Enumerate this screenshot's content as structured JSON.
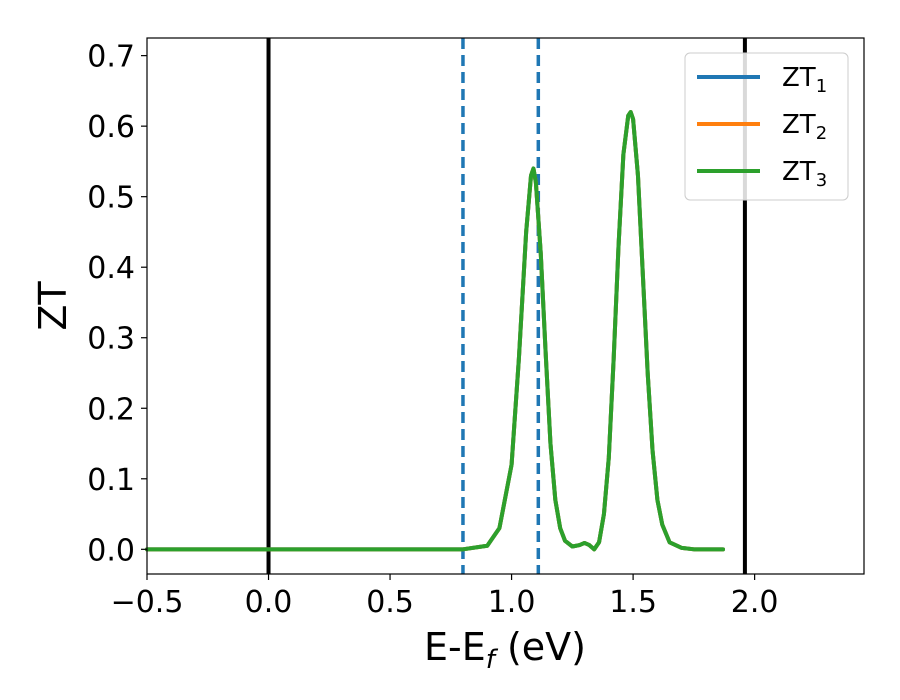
{
  "colors": {
    "ZT1": "#1f77b4",
    "ZT2": "#ff7f0e",
    "ZT3": "#2ca02c",
    "vline_solid": "#000000",
    "vline_dashed": "#1f77b4"
  },
  "chart_data": {
    "type": "line",
    "xlabel": "E-E",
    "xlabel_sub": "f",
    "xlabel_unit": " (eV)",
    "ylabel": "ZT",
    "xlim": [
      -0.5,
      2.45
    ],
    "ylim": [
      -0.035,
      0.725
    ],
    "xticks": [
      -0.5,
      0.0,
      0.5,
      1.0,
      1.5,
      2.0
    ],
    "xtick_labels": [
      "−0.5",
      "0.0",
      "0.5",
      "1.0",
      "1.5",
      "2.0"
    ],
    "yticks": [
      0.0,
      0.1,
      0.2,
      0.3,
      0.4,
      0.5,
      0.6,
      0.7
    ],
    "ytick_labels": [
      "0.0",
      "0.1",
      "0.2",
      "0.3",
      "0.4",
      "0.5",
      "0.6",
      "0.7"
    ],
    "grid": false,
    "legend_position": "top-right",
    "x": [
      -0.5,
      0.0,
      0.5,
      0.8,
      0.9,
      0.95,
      1.0,
      1.03,
      1.06,
      1.08,
      1.09,
      1.1,
      1.12,
      1.14,
      1.16,
      1.18,
      1.2,
      1.22,
      1.25,
      1.28,
      1.3,
      1.32,
      1.34,
      1.36,
      1.38,
      1.4,
      1.42,
      1.44,
      1.46,
      1.48,
      1.49,
      1.5,
      1.52,
      1.54,
      1.56,
      1.58,
      1.6,
      1.62,
      1.65,
      1.7,
      1.75,
      1.8,
      1.87
    ],
    "series": [
      {
        "name": "ZT",
        "sub": "1",
        "color_key": "ZT1",
        "values": [
          0.0,
          0.0,
          0.0,
          0.0,
          0.005,
          0.03,
          0.12,
          0.27,
          0.45,
          0.53,
          0.54,
          0.52,
          0.42,
          0.28,
          0.15,
          0.07,
          0.03,
          0.012,
          0.004,
          0.006,
          0.009,
          0.006,
          0.0,
          0.01,
          0.05,
          0.13,
          0.27,
          0.43,
          0.56,
          0.615,
          0.62,
          0.61,
          0.53,
          0.39,
          0.25,
          0.14,
          0.07,
          0.035,
          0.01,
          0.002,
          0.0,
          0.0,
          0.0
        ]
      },
      {
        "name": "ZT",
        "sub": "2",
        "color_key": "ZT2",
        "values": [
          0.0,
          0.0,
          0.0,
          0.0,
          0.005,
          0.03,
          0.12,
          0.27,
          0.45,
          0.53,
          0.54,
          0.52,
          0.42,
          0.28,
          0.15,
          0.07,
          0.03,
          0.012,
          0.004,
          0.006,
          0.009,
          0.006,
          0.0,
          0.01,
          0.05,
          0.13,
          0.27,
          0.43,
          0.56,
          0.615,
          0.62,
          0.61,
          0.53,
          0.39,
          0.25,
          0.14,
          0.07,
          0.035,
          0.01,
          0.002,
          0.0,
          0.0,
          0.0
        ]
      },
      {
        "name": "ZT",
        "sub": "3",
        "color_key": "ZT3",
        "values": [
          0.0,
          0.0,
          0.0,
          0.0,
          0.005,
          0.03,
          0.12,
          0.27,
          0.45,
          0.53,
          0.54,
          0.52,
          0.42,
          0.28,
          0.15,
          0.07,
          0.03,
          0.012,
          0.004,
          0.006,
          0.009,
          0.006,
          0.0,
          0.01,
          0.05,
          0.13,
          0.27,
          0.43,
          0.56,
          0.615,
          0.62,
          0.61,
          0.53,
          0.39,
          0.25,
          0.14,
          0.07,
          0.035,
          0.01,
          0.002,
          0.0,
          0.0,
          0.0
        ]
      }
    ],
    "vlines": [
      {
        "x": 0.0,
        "style": "solid",
        "color_key": "vline_solid"
      },
      {
        "x": 1.96,
        "style": "solid",
        "color_key": "vline_solid"
      },
      {
        "x": 0.8,
        "style": "dashed",
        "color_key": "vline_dashed"
      },
      {
        "x": 1.11,
        "style": "dashed",
        "color_key": "vline_dashed"
      }
    ]
  }
}
